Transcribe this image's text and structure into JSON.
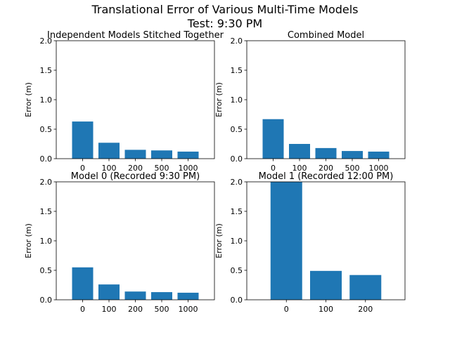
{
  "figure": {
    "title_line1": "Translational Error of Various Multi-Time Models",
    "title_line2": "Test: 9:30 PM"
  },
  "colors": {
    "bar": "#1f77b4",
    "axis": "#000000",
    "background": "#ffffff"
  },
  "chart_data": [
    {
      "type": "bar",
      "title": "Independent Models Stitched Together",
      "xlabel": "",
      "ylabel": "Error (m)",
      "categories": [
        "0",
        "100",
        "200",
        "500",
        "1000"
      ],
      "values": [
        0.63,
        0.27,
        0.15,
        0.14,
        0.12
      ],
      "ylim": [
        0,
        2.0
      ],
      "yticks": [
        "0.0",
        "0.5",
        "1.0",
        "1.5",
        "2.0"
      ],
      "grid": false
    },
    {
      "type": "bar",
      "title": "Combined Model",
      "xlabel": "",
      "ylabel": "Error (m)",
      "categories": [
        "0",
        "100",
        "200",
        "500",
        "1000"
      ],
      "values": [
        0.67,
        0.25,
        0.18,
        0.13,
        0.12
      ],
      "ylim": [
        0,
        2.0
      ],
      "yticks": [
        "0.0",
        "0.5",
        "1.0",
        "1.5",
        "2.0"
      ],
      "grid": false
    },
    {
      "type": "bar",
      "title": "Model 0 (Recorded 9:30 PM)",
      "xlabel": "",
      "ylabel": "Error (m)",
      "categories": [
        "0",
        "100",
        "200",
        "500",
        "1000"
      ],
      "values": [
        0.55,
        0.26,
        0.14,
        0.13,
        0.12
      ],
      "ylim": [
        0,
        2.0
      ],
      "yticks": [
        "0.0",
        "0.5",
        "1.0",
        "1.5",
        "2.0"
      ],
      "grid": false
    },
    {
      "type": "bar",
      "title": "Model 1 (Recorded 12:00 PM)",
      "xlabel": "",
      "ylabel": "Error (m)",
      "categories": [
        "0",
        "100",
        "200"
      ],
      "values": [
        2.0,
        0.49,
        0.42
      ],
      "ylim": [
        0,
        2.0
      ],
      "yticks": [
        "0.0",
        "0.5",
        "1.0",
        "1.5",
        "2.0"
      ],
      "grid": false
    }
  ]
}
